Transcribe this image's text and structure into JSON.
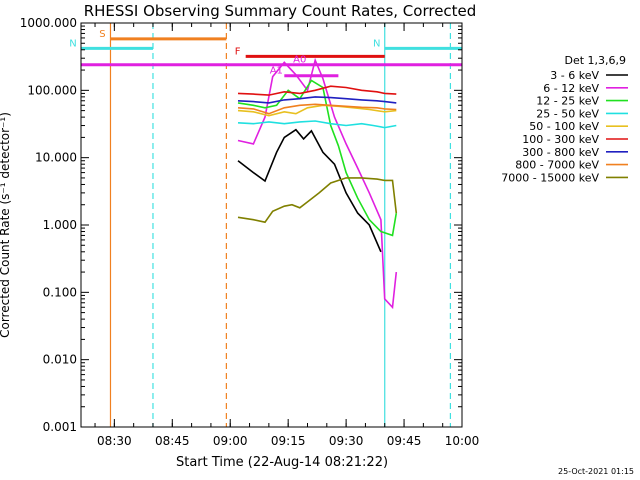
{
  "chart_data": {
    "type": "line",
    "title": "RHESSI Observing Summary Count Rates, Corrected",
    "xlabel": "Start Time (22-Aug-14 08:21:22)",
    "ylabel": "Corrected Count Rate (s⁻¹ detector⁻¹)",
    "yscale": "log",
    "ylim": [
      0.001,
      1000
    ],
    "xlim": [
      "08:21:22",
      "10:00:00"
    ],
    "y_ticks": [
      "0.001",
      "0.010",
      "0.100",
      "1.000",
      "10.000",
      "100.000",
      "1000.000"
    ],
    "x_ticks": [
      "08:30",
      "08:45",
      "09:00",
      "09:15",
      "09:30",
      "09:45",
      "10:00"
    ],
    "legend_title": "Det 1,3,6,9",
    "legend_position": "right",
    "footer_date": "25-Oct-2021 01:15",
    "series": [
      {
        "name": "3 - 6 keV",
        "color": "#000000",
        "points": [
          [
            "09:02",
            9
          ],
          [
            "09:06",
            6
          ],
          [
            "09:09",
            4.5
          ],
          [
            "09:12",
            12
          ],
          [
            "09:14",
            20
          ],
          [
            "09:17",
            26
          ],
          [
            "09:19",
            19
          ],
          [
            "09:21",
            25
          ],
          [
            "09:24",
            12
          ],
          [
            "09:27",
            8
          ],
          [
            "09:30",
            3
          ],
          [
            "09:33",
            1.5
          ],
          [
            "09:36",
            1
          ],
          [
            "09:39",
            0.4
          ]
        ]
      },
      {
        "name": "6 - 12 keV",
        "color": "#e020e0",
        "points": [
          [
            "09:02",
            18
          ],
          [
            "09:06",
            16
          ],
          [
            "09:09",
            40
          ],
          [
            "09:11",
            160
          ],
          [
            "09:14",
            260
          ],
          [
            "09:17",
            170
          ],
          [
            "09:20",
            100
          ],
          [
            "09:22",
            280
          ],
          [
            "09:24",
            150
          ],
          [
            "09:27",
            40
          ],
          [
            "09:30",
            16
          ],
          [
            "09:33",
            7
          ],
          [
            "09:36",
            3
          ],
          [
            "09:39",
            1.2
          ],
          [
            "09:40",
            0.08
          ],
          [
            "09:42",
            0.06
          ],
          [
            "09:43",
            0.2
          ]
        ]
      },
      {
        "name": "12 - 25 keV",
        "color": "#20e020",
        "points": [
          [
            "09:02",
            65
          ],
          [
            "09:06",
            60
          ],
          [
            "09:09",
            55
          ],
          [
            "09:12",
            60
          ],
          [
            "09:15",
            100
          ],
          [
            "09:18",
            75
          ],
          [
            "09:21",
            140
          ],
          [
            "09:24",
            110
          ],
          [
            "09:26",
            30
          ],
          [
            "09:28",
            15
          ],
          [
            "09:30",
            6
          ],
          [
            "09:33",
            2.5
          ],
          [
            "09:36",
            1.2
          ],
          [
            "09:39",
            0.8
          ],
          [
            "09:42",
            0.7
          ],
          [
            "09:43",
            1.5
          ]
        ]
      },
      {
        "name": "25 - 50 keV",
        "color": "#20e0e0",
        "points": [
          [
            "09:02",
            33
          ],
          [
            "09:06",
            32
          ],
          [
            "09:10",
            34
          ],
          [
            "09:14",
            32
          ],
          [
            "09:18",
            34
          ],
          [
            "09:22",
            35
          ],
          [
            "09:26",
            32
          ],
          [
            "09:30",
            30
          ],
          [
            "09:34",
            32
          ],
          [
            "09:37",
            30
          ],
          [
            "09:40",
            28
          ],
          [
            "09:43",
            30
          ]
        ]
      },
      {
        "name": "50 - 100 keV",
        "color": "#e8c020",
        "points": [
          [
            "09:02",
            50
          ],
          [
            "09:06",
            48
          ],
          [
            "09:10",
            42
          ],
          [
            "09:14",
            48
          ],
          [
            "09:17",
            45
          ],
          [
            "09:20",
            55
          ],
          [
            "09:24",
            60
          ],
          [
            "09:28",
            58
          ],
          [
            "09:32",
            55
          ],
          [
            "09:36",
            52
          ],
          [
            "09:40",
            48
          ],
          [
            "09:43",
            50
          ]
        ]
      },
      {
        "name": "100 - 300 keV",
        "color": "#e01010",
        "points": [
          [
            "09:02",
            90
          ],
          [
            "09:06",
            88
          ],
          [
            "09:10",
            85
          ],
          [
            "09:14",
            95
          ],
          [
            "09:18",
            90
          ],
          [
            "09:22",
            100
          ],
          [
            "09:26",
            115
          ],
          [
            "09:30",
            110
          ],
          [
            "09:34",
            100
          ],
          [
            "09:38",
            95
          ],
          [
            "09:40",
            90
          ],
          [
            "09:43",
            88
          ]
        ]
      },
      {
        "name": "300 - 800 keV",
        "color": "#2020c0",
        "points": [
          [
            "09:02",
            70
          ],
          [
            "09:06",
            68
          ],
          [
            "09:10",
            65
          ],
          [
            "09:14",
            72
          ],
          [
            "09:18",
            75
          ],
          [
            "09:22",
            80
          ],
          [
            "09:26",
            78
          ],
          [
            "09:30",
            75
          ],
          [
            "09:34",
            72
          ],
          [
            "09:38",
            70
          ],
          [
            "09:40",
            68
          ],
          [
            "09:43",
            65
          ]
        ]
      },
      {
        "name": "800 - 7000 keV",
        "color": "#f08020",
        "points": [
          [
            "09:02",
            55
          ],
          [
            "09:06",
            53
          ],
          [
            "09:10",
            45
          ],
          [
            "09:14",
            55
          ],
          [
            "09:18",
            60
          ],
          [
            "09:22",
            62
          ],
          [
            "09:26",
            60
          ],
          [
            "09:30",
            58
          ],
          [
            "09:34",
            56
          ],
          [
            "09:38",
            55
          ],
          [
            "09:40",
            53
          ],
          [
            "09:43",
            52
          ]
        ]
      },
      {
        "name": "7000 - 15000 keV",
        "color": "#808000",
        "points": [
          [
            "09:02",
            1.3
          ],
          [
            "09:06",
            1.2
          ],
          [
            "09:09",
            1.1
          ],
          [
            "09:11",
            1.6
          ],
          [
            "09:14",
            1.9
          ],
          [
            "09:16",
            2.0
          ],
          [
            "09:18",
            1.8
          ],
          [
            "09:20",
            2.2
          ],
          [
            "09:23",
            3.0
          ],
          [
            "09:26",
            4.2
          ],
          [
            "09:30",
            5.0
          ],
          [
            "09:34",
            5.0
          ],
          [
            "09:38",
            4.8
          ],
          [
            "09:40",
            4.6
          ],
          [
            "09:42",
            4.6
          ],
          [
            "09:43",
            1.5
          ]
        ]
      }
    ],
    "flag_bars": [
      {
        "label": "S",
        "color": "#f08020",
        "start": "08:29",
        "end": "08:59",
        "level": 580
      },
      {
        "label": "N",
        "color": "#40e0e0",
        "start": "08:21:22",
        "end": "08:40",
        "level": 420
      },
      {
        "label": "N",
        "color": "#40e0e0",
        "start": "09:40",
        "end": "10:00",
        "level": 420
      },
      {
        "label": "F",
        "color": "#e01010",
        "start": "09:04",
        "end": "09:40",
        "level": 320
      },
      {
        "label": "A0",
        "color": "#e020e0",
        "start": "08:21:22",
        "end": "10:00",
        "level": 240
      },
      {
        "label": "A1",
        "color": "#e020e0",
        "start": "09:14",
        "end": "09:28",
        "level": 165
      }
    ],
    "vertical_markers": [
      {
        "time": "08:29",
        "color": "#f08020",
        "style": "solid"
      },
      {
        "time": "08:40",
        "color": "#40e0e0",
        "style": "dashed"
      },
      {
        "time": "08:59",
        "color": "#f08020",
        "style": "dashed"
      },
      {
        "time": "09:40",
        "color": "#40e0e0",
        "style": "solid"
      },
      {
        "time": "09:57",
        "color": "#40e0e0",
        "style": "dashed"
      }
    ]
  }
}
